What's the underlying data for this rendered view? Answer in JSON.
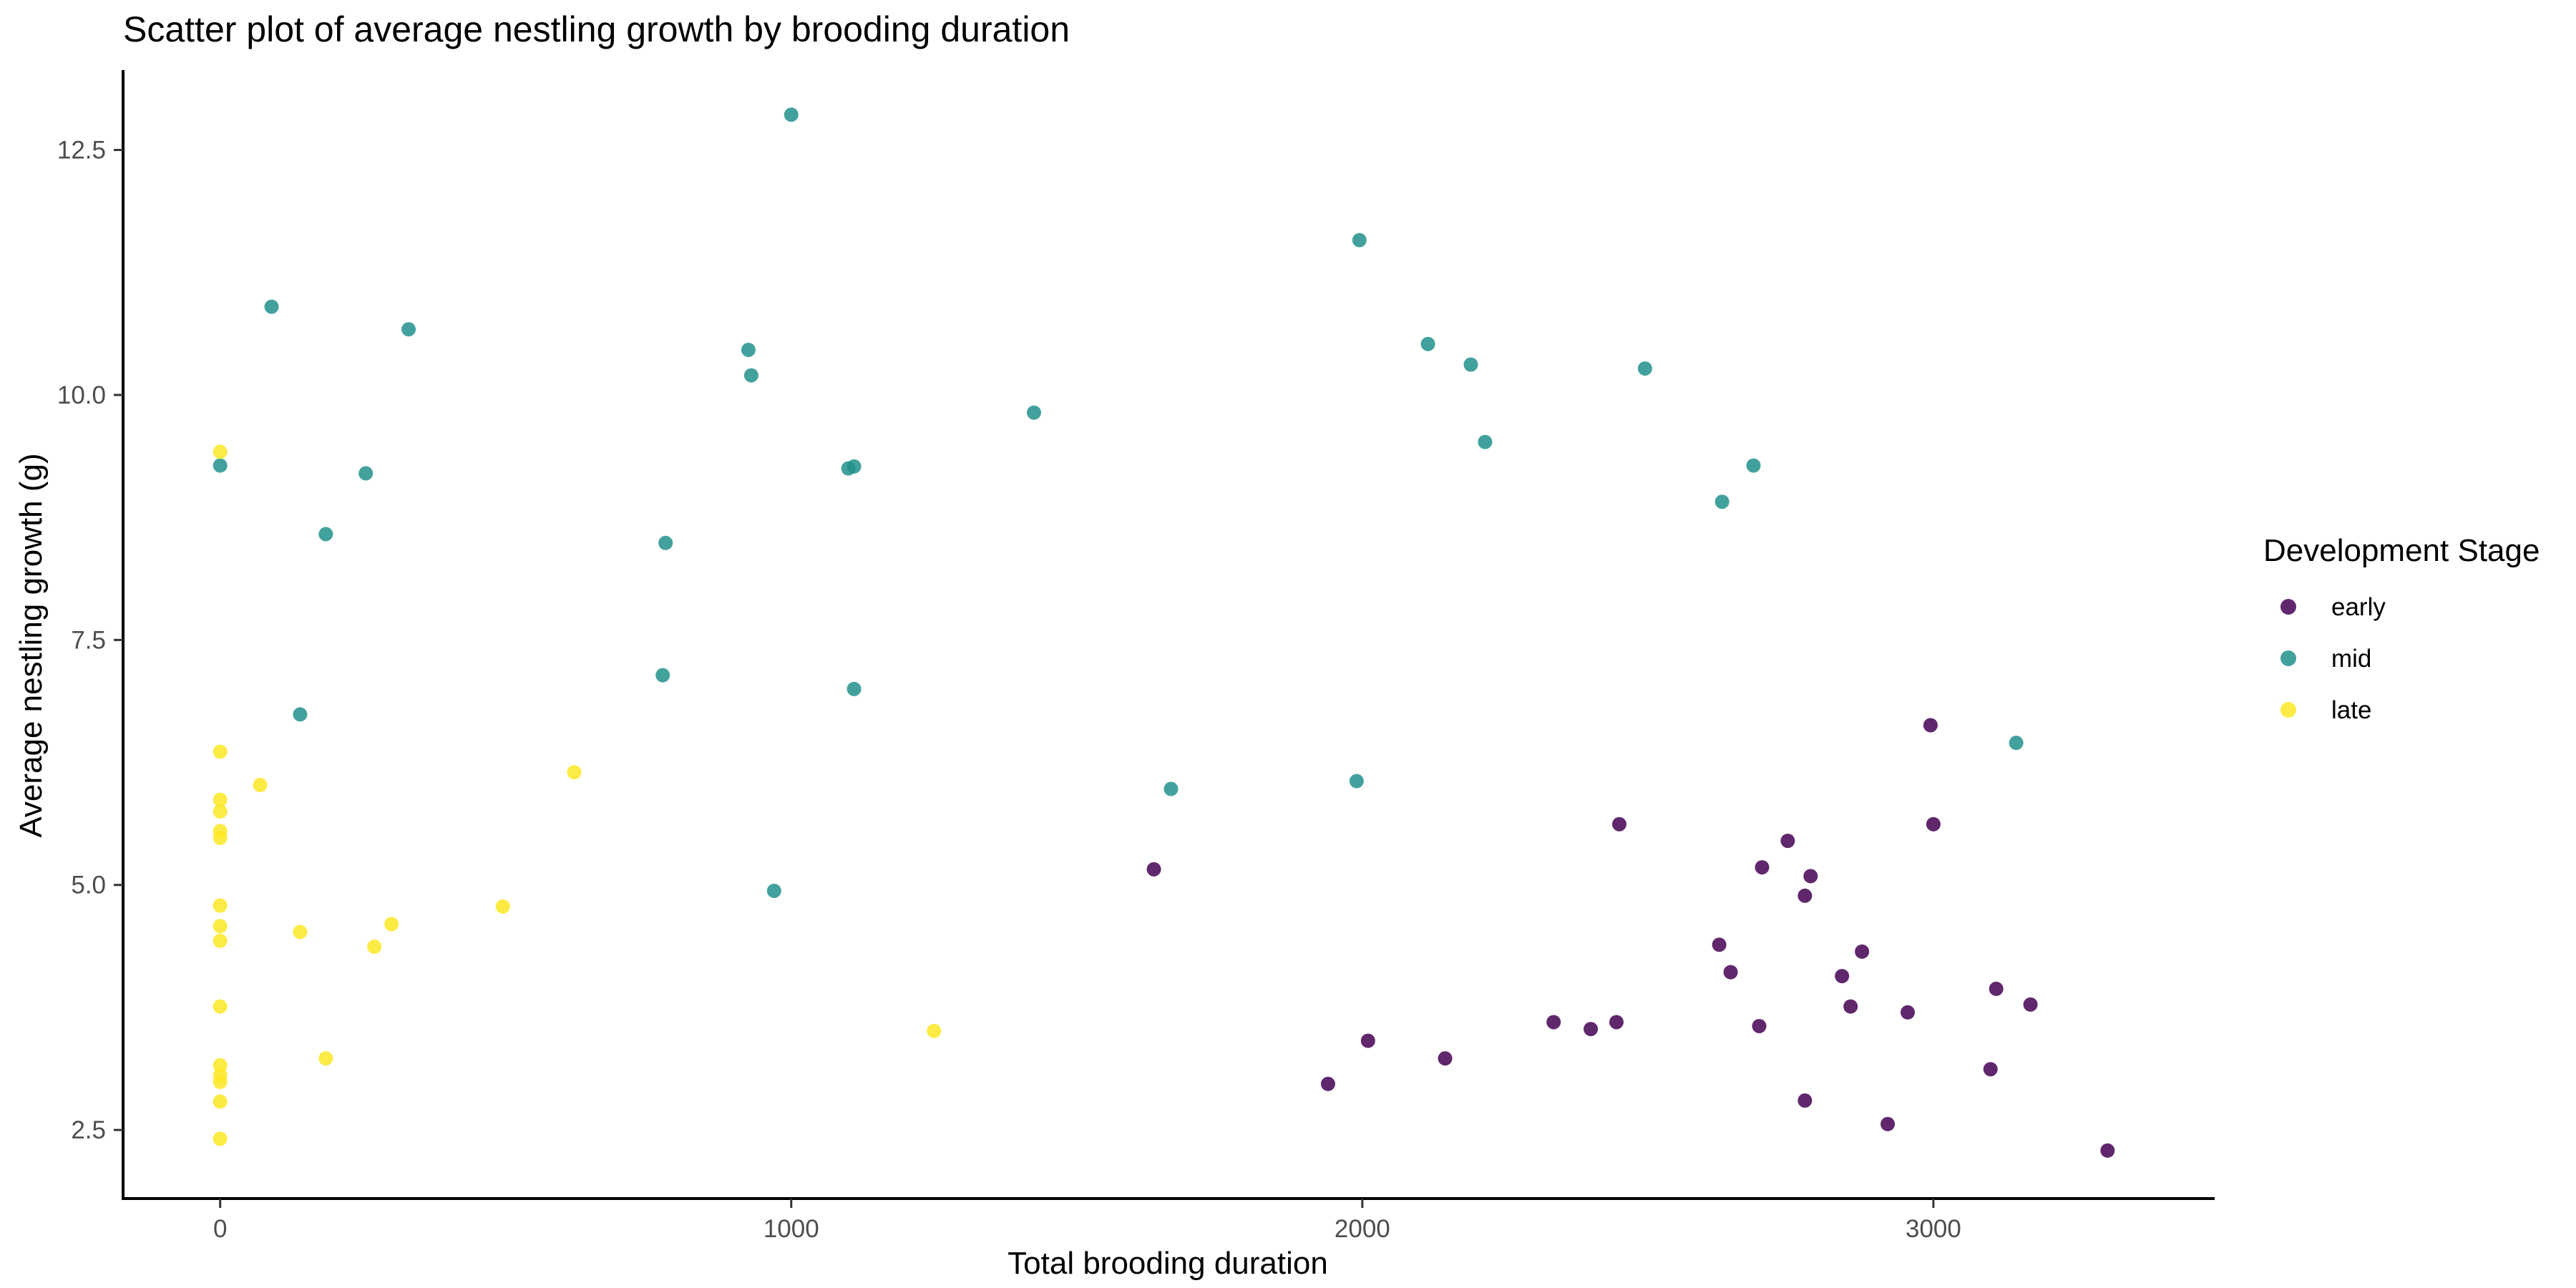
{
  "chart_data": {
    "type": "scatter",
    "title": "Scatter plot of average nestling growth by brooding duration",
    "xlabel": "Total brooding duration",
    "ylabel": "Average nestling growth (g)",
    "xlim": [
      -170,
      3490
    ],
    "ylim": [
      1.8,
      13.3
    ],
    "x_ticks": [
      0,
      1000,
      2000,
      3000
    ],
    "y_ticks": [
      2.5,
      5.0,
      7.5,
      10.0,
      12.5
    ],
    "y_tick_labels": [
      "2.5",
      "5.0",
      "7.5",
      "10.0",
      "12.5"
    ],
    "grid": false,
    "legend": {
      "title": "Development Stage",
      "position": "right"
    },
    "series": [
      {
        "name": "early",
        "color": "#440154",
        "points": [
          [
            1635,
            5.16
          ],
          [
            1940,
            2.97
          ],
          [
            2010,
            3.41
          ],
          [
            2145,
            3.23
          ],
          [
            2335,
            3.6
          ],
          [
            2400,
            3.53
          ],
          [
            2445,
            3.6
          ],
          [
            2450,
            5.62
          ],
          [
            2625,
            4.39
          ],
          [
            2645,
            4.11
          ],
          [
            2695,
            3.56
          ],
          [
            2700,
            5.18
          ],
          [
            2745,
            5.45
          ],
          [
            2775,
            2.8
          ],
          [
            2775,
            4.89
          ],
          [
            2785,
            5.09
          ],
          [
            2840,
            4.07
          ],
          [
            2855,
            3.76
          ],
          [
            2875,
            4.32
          ],
          [
            2920,
            2.56
          ],
          [
            2955,
            3.7
          ],
          [
            2995,
            6.63
          ],
          [
            3000,
            5.62
          ],
          [
            3100,
            3.12
          ],
          [
            3110,
            3.94
          ],
          [
            3170,
            3.78
          ],
          [
            3305,
            2.29
          ]
        ]
      },
      {
        "name": "mid",
        "color": "#21908C",
        "points": [
          [
            0,
            9.28
          ],
          [
            90,
            10.9
          ],
          [
            140,
            6.74
          ],
          [
            185,
            8.58
          ],
          [
            255,
            9.2
          ],
          [
            330,
            10.67
          ],
          [
            775,
            7.14
          ],
          [
            780,
            8.49
          ],
          [
            925,
            10.46
          ],
          [
            930,
            10.2
          ],
          [
            970,
            4.94
          ],
          [
            1000,
            12.86
          ],
          [
            1100,
            9.25
          ],
          [
            1110,
            9.27
          ],
          [
            1110,
            7.0
          ],
          [
            1425,
            9.82
          ],
          [
            1665,
            5.98
          ],
          [
            1990,
            6.06
          ],
          [
            1995,
            11.58
          ],
          [
            2115,
            10.52
          ],
          [
            2190,
            10.31
          ],
          [
            2215,
            9.52
          ],
          [
            2495,
            10.27
          ],
          [
            2630,
            8.91
          ],
          [
            2685,
            9.28
          ],
          [
            3145,
            6.45
          ]
        ]
      },
      {
        "name": "late",
        "color": "#FDE725",
        "points": [
          [
            0,
            9.42
          ],
          [
            0,
            6.36
          ],
          [
            0,
            5.87
          ],
          [
            0,
            5.75
          ],
          [
            0,
            5.55
          ],
          [
            0,
            5.48
          ],
          [
            0,
            4.79
          ],
          [
            0,
            4.58
          ],
          [
            0,
            4.43
          ],
          [
            0,
            3.76
          ],
          [
            0,
            3.16
          ],
          [
            0,
            3.06
          ],
          [
            0,
            2.99
          ],
          [
            0,
            2.79
          ],
          [
            0,
            2.41
          ],
          [
            70,
            6.02
          ],
          [
            140,
            4.52
          ],
          [
            185,
            3.23
          ],
          [
            270,
            4.37
          ],
          [
            300,
            4.6
          ],
          [
            495,
            4.78
          ],
          [
            620,
            6.15
          ],
          [
            1250,
            3.51
          ]
        ]
      }
    ]
  }
}
